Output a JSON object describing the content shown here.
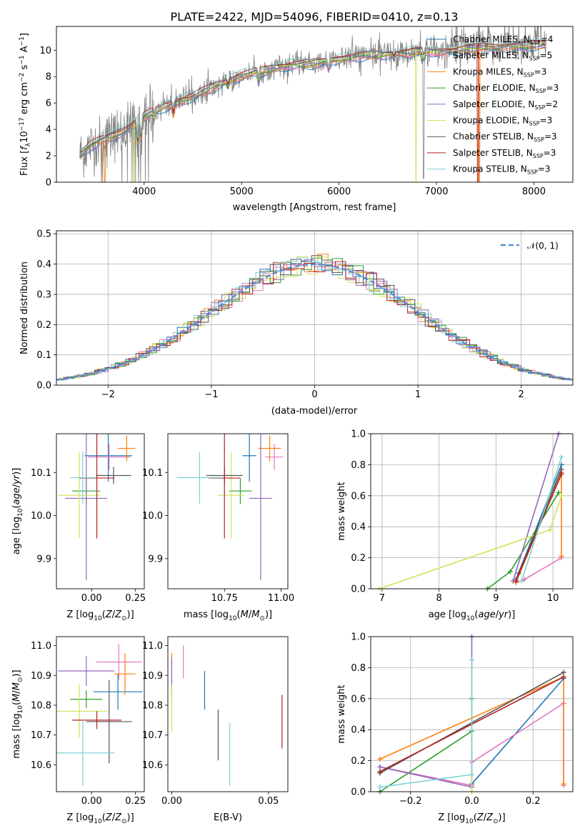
{
  "figure": {
    "title": "PLATE=2422, MJD=54096, FIBERID=0410, z=0.13"
  },
  "series_colors": {
    "Chabrier MILES": "#1f77b4",
    "Salpeter MILES": "#e377c2",
    "Kroupa MILES": "#ff7f0e",
    "Chabrier ELODIE": "#2ca02c",
    "Salpeter ELODIE": "#9467bd",
    "Kroupa ELODIE": "#d4e157",
    "Chabrier STELIB": "#555555",
    "Salpeter STELIB": "#b22222",
    "Kroupa STELIB": "#7fd0d6"
  },
  "chart_data": [
    {
      "id": "spectrum",
      "type": "line",
      "title": "PLATE=2422, MJD=54096, FIBERID=0410, z=0.13",
      "xlabel": "wavelength [Angstrom, rest frame]",
      "ylabel": "Flux [f_λ 10^-17 erg cm^-2 s^-1 A^-1]",
      "xlim": [
        3100,
        8400
      ],
      "ylim": [
        0,
        11.8
      ],
      "xticks": [
        4000,
        5000,
        6000,
        7000,
        8000
      ],
      "yticks": [
        0,
        2,
        4,
        6,
        8,
        10
      ],
      "grid": false,
      "legend_position": "upper right",
      "legend": [
        {
          "name": "Chabrier MILES, N_SSP=4",
          "label": "Chabrier MILES, N",
          "sub": "SSP",
          "tail": "=4"
        },
        {
          "name": "Salpeter MILES, N_SSP=5",
          "label": "Salpeter MILES, N",
          "sub": "SSP",
          "tail": "=5"
        },
        {
          "name": "Kroupa MILES, N_SSP=3",
          "label": "Kroupa MILES, N",
          "sub": "SSP",
          "tail": "=3"
        },
        {
          "name": "Chabrier ELODIE, N_SSP=3",
          "label": "Chabrier ELODIE, N",
          "sub": "SSP",
          "tail": "=3"
        },
        {
          "name": "Salpeter ELODIE, N_SSP=2",
          "label": "Salpeter ELODIE, N",
          "sub": "SSP",
          "tail": "=2"
        },
        {
          "name": "Kroupa ELODIE, N_SSP=3",
          "label": "Kroupa ELODIE, N",
          "sub": "SSP",
          "tail": "=3"
        },
        {
          "name": "Chabrier STELIB, N_SSP=3",
          "label": "Chabrier STELIB, N",
          "sub": "SSP",
          "tail": "=3"
        },
        {
          "name": "Salpeter STELIB, N_SSP=3",
          "label": "Salpeter STELIB, N",
          "sub": "SSP",
          "tail": "=3"
        },
        {
          "name": "Kroupa STELIB, N_SSP=3",
          "label": "Kroupa STELIB, N",
          "sub": "SSP",
          "tail": "=3"
        }
      ],
      "data_series": {
        "name": "data",
        "color": "#808080"
      },
      "continuum_knots": {
        "x": [
          3350,
          3450,
          3600,
          3800,
          4000,
          4200,
          4500,
          4800,
          5000,
          5200,
          5500,
          5800,
          6000,
          6300,
          6600,
          6900,
          7200,
          7500,
          7800,
          8100
        ],
        "y": [
          2.1,
          2.8,
          3.3,
          3.9,
          5.0,
          5.7,
          6.5,
          7.5,
          8.1,
          8.4,
          8.9,
          9.0,
          9.4,
          9.6,
          9.8,
          9.9,
          10.0,
          10.2,
          10.3,
          10.4
        ]
      },
      "absorption_features": [
        {
          "x": 3934,
          "depth": 1.6
        },
        {
          "x": 3969,
          "depth": 1.4
        },
        {
          "x": 4102,
          "depth": 0.5
        },
        {
          "x": 4300,
          "depth": 0.8
        },
        {
          "x": 4861,
          "depth": 0.4
        },
        {
          "x": 5175,
          "depth": 0.7
        },
        {
          "x": 5893,
          "depth": 0.6
        },
        {
          "x": 6563,
          "depth": 0.3
        },
        {
          "x": 6870,
          "depth": 0.5
        }
      ],
      "model_drops": [
        {
          "series": "Kroupa MILES",
          "x": 3595,
          "to": 0
        },
        {
          "series": "Kroupa ELODIE",
          "x": 3895,
          "to": 0
        },
        {
          "series": "Kroupa ELODIE",
          "x": 6790,
          "to": 0
        },
        {
          "series": "Salpeter STELIB",
          "x": 7425,
          "to": 0
        },
        {
          "series": "Kroupa MILES",
          "x": 7442,
          "to": 0
        }
      ]
    },
    {
      "id": "residuals",
      "type": "histogram",
      "xlabel": "(data-model)/error",
      "ylabel": "Normed distribution",
      "xlim": [
        -2.5,
        2.5
      ],
      "ylim": [
        0,
        0.51
      ],
      "xticks": [
        -2,
        -1,
        0,
        1,
        2
      ],
      "yticks": [
        0.0,
        0.1,
        0.2,
        0.3,
        0.4,
        0.5
      ],
      "grid": true,
      "legend_position": "upper right",
      "reference_curve": {
        "name": "N(0,1)",
        "label": "𝒩(0, 1)",
        "mean": 0,
        "sigma": 1,
        "color": "#5b8bd9",
        "style": "dashed"
      },
      "bin_width": 0.1
    },
    {
      "id": "age_vs_Z",
      "type": "errorbar",
      "xlabel": "Z [log10(Z/Z_sun)]",
      "ylabel": "age [log10(age/yr)]",
      "xlim": [
        -0.2,
        0.3
      ],
      "ylim": [
        9.83,
        10.19
      ],
      "xticks": [
        0.0,
        0.25
      ],
      "yticks": [
        9.9,
        10.0,
        10.1
      ],
      "grid": false,
      "points": [
        {
          "series": "Chabrier MILES",
          "x": 0.095,
          "xerr": 0.135,
          "y": 10.139,
          "yerr": 0.06
        },
        {
          "series": "Salpeter MILES",
          "x": 0.1,
          "xerr": 0.12,
          "y": 10.136,
          "yerr": 0.03
        },
        {
          "series": "Kroupa MILES",
          "x": 0.2,
          "xerr": 0.05,
          "y": 10.156,
          "yerr": 0.03
        },
        {
          "series": "Chabrier ELODIE",
          "x": -0.03,
          "xerr": 0.08,
          "y": 10.057,
          "yerr": 0.03
        },
        {
          "series": "Salpeter ELODIE",
          "x": -0.03,
          "xerr": 0.12,
          "y": 10.04,
          "yerr": 0.19
        },
        {
          "series": "Kroupa ELODIE",
          "x": -0.07,
          "xerr": 0.12,
          "y": 10.047,
          "yerr": 0.1
        },
        {
          "series": "Chabrier STELIB",
          "x": 0.125,
          "xerr": 0.1,
          "y": 10.093,
          "yerr": 0.02
        },
        {
          "series": "Salpeter STELIB",
          "x": 0.03,
          "xerr": 0.1,
          "y": 10.087,
          "yerr": 0.14
        },
        {
          "series": "Kroupa STELIB",
          "x": -0.05,
          "xerr": 0.07,
          "y": 10.088,
          "yerr": 0.06
        }
      ]
    },
    {
      "id": "age_vs_mass",
      "type": "errorbar",
      "xlabel": "mass [log10(M/M_sun)]",
      "ylabel": "",
      "xlim": [
        10.5,
        11.03
      ],
      "ylim": [
        9.83,
        10.19
      ],
      "xticks": [
        10.75,
        11.0
      ],
      "yticks": [
        9.9,
        10.0,
        10.1
      ],
      "grid": false,
      "points": [
        {
          "series": "Chabrier MILES",
          "x": 10.86,
          "xerr": 0.03,
          "y": 10.139,
          "yerr": 0.06
        },
        {
          "series": "Salpeter MILES",
          "x": 10.97,
          "xerr": 0.04,
          "y": 10.136,
          "yerr": 0.03
        },
        {
          "series": "Kroupa MILES",
          "x": 10.95,
          "xerr": 0.05,
          "y": 10.156,
          "yerr": 0.03
        },
        {
          "series": "Chabrier ELODIE",
          "x": 10.82,
          "xerr": 0.05,
          "y": 10.057,
          "yerr": 0.03
        },
        {
          "series": "Salpeter ELODIE",
          "x": 10.91,
          "xerr": 0.05,
          "y": 10.04,
          "yerr": 0.19
        },
        {
          "series": "Kroupa ELODIE",
          "x": 10.78,
          "xerr": 0.06,
          "y": 10.047,
          "yerr": 0.1
        },
        {
          "series": "Chabrier STELIB",
          "x": 10.75,
          "xerr": 0.08,
          "y": 10.093,
          "yerr": 0.02
        },
        {
          "series": "Salpeter STELIB",
          "x": 10.75,
          "xerr": 0.07,
          "y": 10.087,
          "yerr": 0.14
        },
        {
          "series": "Kroupa STELIB",
          "x": 10.64,
          "xerr": 0.1,
          "y": 10.088,
          "yerr": 0.06
        }
      ]
    },
    {
      "id": "mass_weight_vs_age",
      "type": "line",
      "xlabel": "age [log10(age/yr)]",
      "ylabel": "mass weight",
      "xlim": [
        6.8,
        10.35
      ],
      "ylim": [
        0.0,
        1.0
      ],
      "xticks": [
        7,
        8,
        9,
        10
      ],
      "yticks": [
        0.0,
        0.2,
        0.4,
        0.6,
        0.8,
        1.0
      ],
      "grid": true,
      "series": [
        {
          "name": "Chabrier MILES",
          "points": [
            [
              9.35,
              0.06
            ],
            [
              10.15,
              0.8
            ]
          ]
        },
        {
          "name": "Salpeter MILES",
          "points": [
            [
              9.35,
              0.04
            ],
            [
              9.5,
              0.06
            ],
            [
              10.15,
              0.2
            ]
          ]
        },
        {
          "name": "Kroupa MILES",
          "points": [
            [
              9.35,
              0.04
            ],
            [
              10.15,
              0.75
            ],
            [
              10.15,
              0.21
            ]
          ]
        },
        {
          "name": "Chabrier ELODIE",
          "points": [
            [
              8.85,
              0.0
            ],
            [
              9.25,
              0.11
            ],
            [
              10.1,
              0.62
            ]
          ]
        },
        {
          "name": "Salpeter ELODIE",
          "points": [
            [
              9.3,
              0.05
            ],
            [
              10.1,
              1.0
            ]
          ]
        },
        {
          "name": "Kroupa ELODIE",
          "points": [
            [
              6.95,
              0.0
            ],
            [
              9.95,
              0.38
            ],
            [
              10.15,
              0.6
            ]
          ]
        },
        {
          "name": "Chabrier STELIB",
          "points": [
            [
              9.4,
              0.1
            ],
            [
              10.15,
              0.77
            ]
          ]
        },
        {
          "name": "Salpeter STELIB",
          "points": [
            [
              9.35,
              0.05
            ],
            [
              10.15,
              0.74
            ]
          ]
        },
        {
          "name": "Kroupa STELIB",
          "points": [
            [
              9.45,
              0.05
            ],
            [
              10.15,
              0.85
            ]
          ]
        }
      ]
    },
    {
      "id": "mass_vs_Z",
      "type": "errorbar",
      "xlabel": "Z [log10(Z/Z_sun)]",
      "ylabel": "mass [log10(M/M_sun)]",
      "xlim": [
        -0.2,
        0.3
      ],
      "ylim": [
        10.51,
        11.03
      ],
      "xticks": [
        0.0,
        0.25
      ],
      "yticks": [
        10.6,
        10.7,
        10.8,
        10.9,
        11.0
      ],
      "grid": false,
      "points": [
        {
          "series": "Chabrier MILES",
          "x": 0.15,
          "xerr": 0.14,
          "y": 10.845,
          "yerr": 0.06
        },
        {
          "series": "Salpeter MILES",
          "x": 0.155,
          "xerr": 0.13,
          "y": 10.945,
          "yerr": 0.06
        },
        {
          "series": "Kroupa MILES",
          "x": 0.19,
          "xerr": 0.06,
          "y": 10.905,
          "yerr": 0.07
        },
        {
          "series": "Chabrier ELODIE",
          "x": -0.03,
          "xerr": 0.09,
          "y": 10.82,
          "yerr": 0.03
        },
        {
          "series": "Salpeter ELODIE",
          "x": -0.03,
          "xerr": 0.16,
          "y": 10.915,
          "yerr": 0.05
        },
        {
          "series": "Kroupa ELODIE",
          "x": -0.07,
          "xerr": 0.16,
          "y": 10.78,
          "yerr": 0.09
        },
        {
          "series": "Chabrier STELIB",
          "x": 0.1,
          "xerr": 0.13,
          "y": 10.745,
          "yerr": 0.14
        },
        {
          "series": "Salpeter STELIB",
          "x": 0.03,
          "xerr": 0.14,
          "y": 10.75,
          "yerr": 0.03
        },
        {
          "series": "Kroupa STELIB",
          "x": -0.05,
          "xerr": 0.18,
          "y": 10.64,
          "yerr": 0.11
        }
      ]
    },
    {
      "id": "mass_vs_EBV",
      "type": "errorbar",
      "xlabel": "E(B-V)",
      "ylabel": "",
      "xlim": [
        -0.002,
        0.06
      ],
      "ylim": [
        10.51,
        11.03
      ],
      "xticks": [
        0.0,
        0.05
      ],
      "yticks": [
        10.6,
        10.7,
        10.8,
        10.9,
        11.0
      ],
      "grid": false,
      "points": [
        {
          "series": "Chabrier MILES",
          "x": 0.017,
          "xerr": 0.0,
          "y": 10.85,
          "yerr": 0.065
        },
        {
          "series": "Salpeter MILES",
          "x": 0.006,
          "xerr": 0.0,
          "y": 10.945,
          "yerr": 0.055
        },
        {
          "series": "Kroupa MILES",
          "x": 0.0,
          "xerr": 0.0,
          "y": 10.905,
          "yerr": 0.07
        },
        {
          "series": "Chabrier ELODIE",
          "x": 0.0,
          "xerr": 0.0,
          "y": 10.84,
          "yerr": 0.03
        },
        {
          "series": "Salpeter ELODIE",
          "x": 0.0,
          "xerr": 0.0,
          "y": 10.91,
          "yerr": 0.05
        },
        {
          "series": "Kroupa ELODIE",
          "x": 0.0,
          "xerr": 0.0,
          "y": 10.79,
          "yerr": 0.08
        },
        {
          "series": "Chabrier STELIB",
          "x": 0.024,
          "xerr": 0.0,
          "y": 10.7,
          "yerr": 0.085
        },
        {
          "series": "Salpeter STELIB",
          "x": 0.057,
          "xerr": 0.0,
          "y": 10.745,
          "yerr": 0.09
        },
        {
          "series": "Kroupa STELIB",
          "x": 0.03,
          "xerr": 0.0,
          "y": 10.635,
          "yerr": 0.105
        }
      ]
    },
    {
      "id": "mass_weight_vs_Z",
      "type": "line",
      "xlabel": "Z [log10(Z/Z_sun)]",
      "ylabel": "mass weight",
      "xlim": [
        -0.33,
        0.33
      ],
      "ylim": [
        0.0,
        1.0
      ],
      "xticks": [
        -0.2,
        0.0,
        0.2
      ],
      "yticks": [
        0.0,
        0.2,
        0.4,
        0.6,
        0.8,
        1.0
      ],
      "grid": true,
      "series": [
        {
          "name": "Chabrier MILES",
          "points": [
            [
              0.0,
              0.05
            ],
            [
              0.3,
              0.73
            ]
          ]
        },
        {
          "name": "Salpeter MILES",
          "points": [
            [
              -0.3,
              0.16
            ],
            [
              0.0,
              0.04
            ],
            [
              0.0,
              0.19
            ],
            [
              0.3,
              0.57
            ],
            [
              0.3,
              0.04
            ]
          ]
        },
        {
          "name": "Kroupa MILES",
          "points": [
            [
              -0.3,
              0.21
            ],
            [
              0.3,
              0.74
            ],
            [
              0.3,
              0.05
            ]
          ]
        },
        {
          "name": "Chabrier ELODIE",
          "points": [
            [
              -0.3,
              0.0
            ],
            [
              0.0,
              0.39
            ],
            [
              0.0,
              0.6
            ]
          ]
        },
        {
          "name": "Salpeter ELODIE",
          "points": [
            [
              -0.3,
              0.16
            ],
            [
              0.0,
              0.03
            ],
            [
              0.0,
              1.0
            ]
          ]
        },
        {
          "name": "Kroupa ELODIE",
          "points": [
            [
              0.0,
              0.0
            ],
            [
              0.0,
              0.85
            ]
          ]
        },
        {
          "name": "Chabrier STELIB",
          "points": [
            [
              -0.3,
              0.12
            ],
            [
              0.3,
              0.77
            ]
          ]
        },
        {
          "name": "Salpeter STELIB",
          "points": [
            [
              -0.3,
              0.13
            ],
            [
              0.3,
              0.74
            ]
          ]
        },
        {
          "name": "Kroupa STELIB",
          "points": [
            [
              -0.3,
              0.03
            ],
            [
              0.0,
              0.11
            ],
            [
              0.0,
              0.85
            ]
          ]
        }
      ]
    }
  ]
}
